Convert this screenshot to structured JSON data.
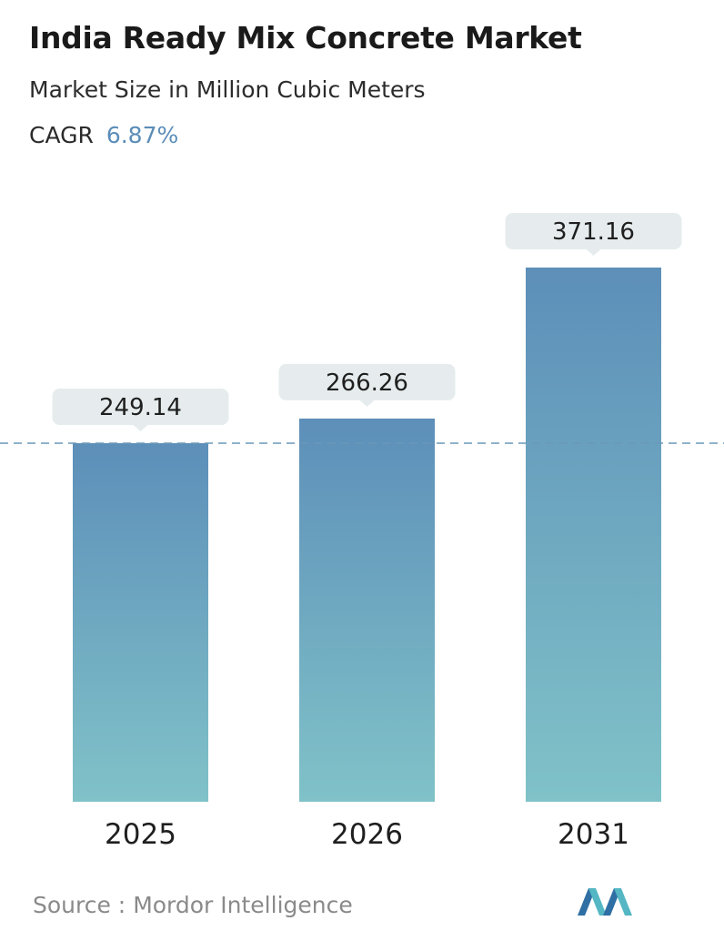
{
  "header": {
    "title": "India Ready Mix Concrete Market",
    "subtitle": "Market Size in Million Cubic Meters",
    "cagr_label": "CAGR",
    "cagr_value": "6.87%"
  },
  "chart_data": {
    "type": "bar",
    "categories": [
      "2025",
      "2026",
      "2031"
    ],
    "values": [
      249.14,
      266.26,
      371.16
    ],
    "value_labels": [
      "249.14",
      "266.26",
      "371.16"
    ],
    "reference_line": 249.14,
    "grid": false,
    "legend": "none"
  },
  "footer": {
    "source_label": "Source :",
    "source_value": "Mordor Intelligence"
  },
  "colors": {
    "bar_top": "#5d8fb9",
    "bar_bottom": "#80c2c8",
    "label_bg": "#e6eced",
    "dashed_line": "#6a98b8",
    "cagr_value": "#5b8db8",
    "logo_dark": "#2f6fa4",
    "logo_light": "#54b7c3"
  },
  "logo": {
    "icon": "mordor-intelligence-logo-icon"
  }
}
